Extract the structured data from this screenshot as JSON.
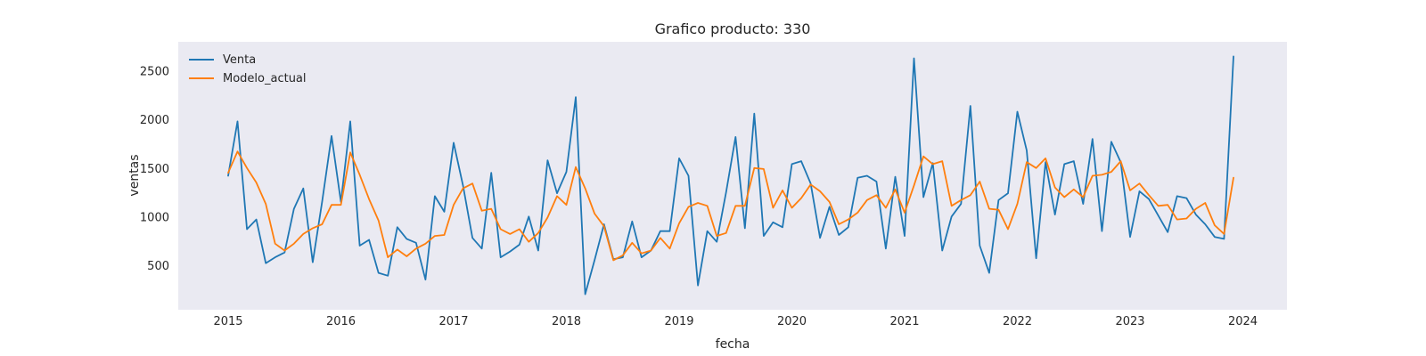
{
  "chart_data": {
    "type": "line",
    "title": "Grafico producto: 330",
    "xlabel": "fecha",
    "ylabel": "ventas",
    "x_start": "2015-01",
    "x_frequency": "monthly",
    "x_ticks": [
      "2015",
      "2016",
      "2017",
      "2018",
      "2019",
      "2020",
      "2021",
      "2022",
      "2023",
      "2024"
    ],
    "y_ticks": [
      500,
      1000,
      1500,
      2000,
      2500
    ],
    "ylim": [
      40,
      2800
    ],
    "grid": false,
    "legend_position": "top-left",
    "series": [
      {
        "name": "Venta",
        "color": "#1f77b4",
        "values": [
          1420,
          1980,
          870,
          970,
          520,
          580,
          630,
          1080,
          1290,
          530,
          1150,
          1830,
          1150,
          1980,
          700,
          760,
          420,
          390,
          890,
          770,
          730,
          350,
          1210,
          1050,
          1760,
          1320,
          780,
          670,
          1450,
          580,
          640,
          710,
          1000,
          650,
          1580,
          1240,
          1460,
          2230,
          200,
          550,
          920,
          560,
          580,
          950,
          580,
          650,
          850,
          850,
          1600,
          1420,
          290,
          850,
          740,
          1250,
          1820,
          880,
          2060,
          800,
          940,
          890,
          1540,
          1570,
          1340,
          780,
          1100,
          810,
          890,
          1400,
          1420,
          1360,
          670,
          1410,
          800,
          2630,
          1200,
          1550,
          650,
          1000,
          1130,
          2140,
          700,
          420,
          1170,
          1240,
          2080,
          1680,
          570,
          1560,
          1020,
          1540,
          1570,
          1130,
          1800,
          850,
          1770,
          1560,
          790,
          1260,
          1180,
          1010,
          840,
          1210,
          1190,
          1020,
          920,
          790,
          770,
          2650
        ]
      },
      {
        "name": "Modelo_actual",
        "color": "#ff7f0e",
        "values": [
          1450,
          1670,
          1500,
          1350,
          1130,
          720,
          650,
          720,
          820,
          880,
          920,
          1120,
          1120,
          1660,
          1430,
          1180,
          960,
          580,
          660,
          590,
          670,
          720,
          800,
          810,
          1120,
          1290,
          1340,
          1060,
          1080,
          870,
          820,
          870,
          740,
          830,
          990,
          1210,
          1120,
          1510,
          1290,
          1030,
          900,
          550,
          600,
          730,
          620,
          650,
          780,
          670,
          930,
          1100,
          1140,
          1110,
          800,
          830,
          1110,
          1110,
          1500,
          1490,
          1090,
          1270,
          1090,
          1190,
          1330,
          1260,
          1150,
          920,
          970,
          1040,
          1170,
          1220,
          1090,
          1280,
          1040,
          1320,
          1620,
          1540,
          1570,
          1110,
          1170,
          1220,
          1360,
          1080,
          1070,
          870,
          1130,
          1560,
          1500,
          1600,
          1300,
          1200,
          1280,
          1200,
          1420,
          1430,
          1460,
          1570,
          1270,
          1340,
          1220,
          1110,
          1120,
          970,
          980,
          1080,
          1140,
          910,
          820,
          1400
        ]
      }
    ]
  }
}
